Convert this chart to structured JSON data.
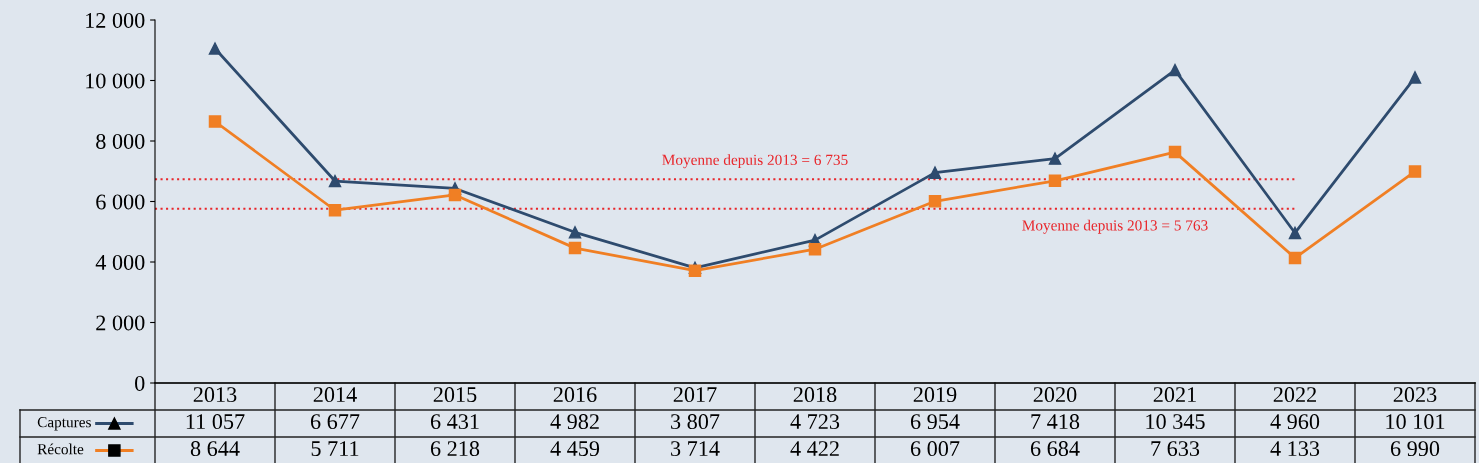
{
  "chart_data": {
    "type": "line",
    "categories": [
      "2013",
      "2014",
      "2015",
      "2016",
      "2017",
      "2018",
      "2019",
      "2020",
      "2021",
      "2022",
      "2023"
    ],
    "series": [
      {
        "name": "Captures",
        "color": "#2e4b6e",
        "marker": "triangle",
        "values": [
          11057,
          6677,
          6431,
          4982,
          3807,
          4723,
          6954,
          7418,
          10345,
          4960,
          10101
        ],
        "value_labels": [
          "11 057",
          "6 677",
          "6 431",
          "4 982",
          "3 807",
          "4 723",
          "6 954",
          "7 418",
          "10 345",
          "4 960",
          "10 101"
        ]
      },
      {
        "name": "Récolte",
        "color": "#f07f24",
        "marker": "square",
        "values": [
          8644,
          5711,
          6218,
          4459,
          3714,
          4422,
          6007,
          6684,
          7633,
          4133,
          6990
        ],
        "value_labels": [
          "8 644",
          "5 711",
          "6 218",
          "4 459",
          "3 714",
          "4 422",
          "6 007",
          "6 684",
          "7 633",
          "4 133",
          "6 990"
        ]
      }
    ],
    "ylim": [
      0,
      12000
    ],
    "yticks": [
      {
        "value": 0,
        "label": "0"
      },
      {
        "value": 2000,
        "label": "2 000"
      },
      {
        "value": 4000,
        "label": "4 000"
      },
      {
        "value": 6000,
        "label": "6 000"
      },
      {
        "value": 8000,
        "label": "8 000"
      },
      {
        "value": 10000,
        "label": "10 000"
      },
      {
        "value": 12000,
        "label": "12 000"
      }
    ],
    "ref_lines": [
      {
        "axis": "y",
        "value": 6735,
        "label": "Moyenne depuis 2013 = 6 735",
        "color": "#e8262b",
        "line_style": "dotted"
      },
      {
        "axis": "y",
        "value": 5763,
        "label": "Moyenne depuis 2013 = 5 763",
        "color": "#e8262b",
        "line_style": "dotted"
      }
    ],
    "grid": false,
    "legend": "bottom left",
    "line_style": "solid"
  }
}
